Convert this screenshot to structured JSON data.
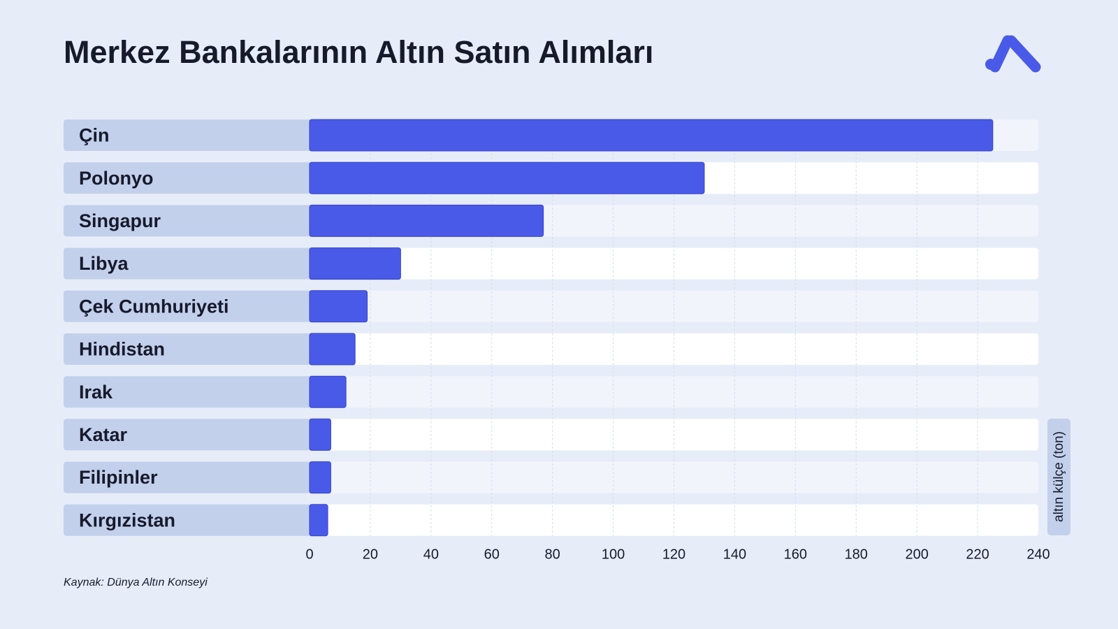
{
  "chart_data": {
    "type": "bar",
    "orientation": "horizontal",
    "title": "Merkez Bankalarının Altın Satın Alımları",
    "source": "Kaynak: Dünya Altın Konseyi",
    "axis_label": "altın külçe (ton)",
    "categories": [
      "Çin",
      "Polonyo",
      "Singapur",
      "Libya",
      "Çek Cumhuriyeti",
      "Hindistan",
      "Irak",
      "Katar",
      "Filipinler",
      "Kırgızistan"
    ],
    "values": [
      225,
      130,
      77,
      30,
      19,
      15,
      12,
      7,
      7,
      6
    ],
    "color": "#4a5ae8",
    "xlim": [
      0,
      240
    ],
    "xticks": [
      0,
      20,
      40,
      60,
      80,
      100,
      120,
      140,
      160,
      180,
      200,
      220,
      240
    ],
    "grid": true
  }
}
